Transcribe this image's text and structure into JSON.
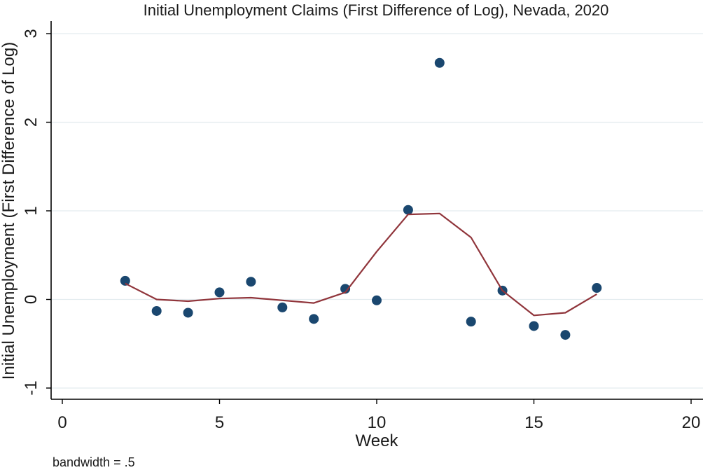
{
  "chart_data": {
    "type": "scatter",
    "title": "Initial Unemployment Claims (First Difference of Log), Nevada, 2020",
    "xlabel": "Week",
    "ylabel": "Initial Unemployment (First Difference of Log)",
    "note": "bandwidth = .5",
    "xlim": [
      0,
      20
    ],
    "ylim": [
      -1,
      3
    ],
    "x_ticks": [
      0,
      5,
      10,
      15,
      20
    ],
    "y_ticks": [
      -1,
      0,
      1,
      2,
      3
    ],
    "grid": true,
    "series": [
      {
        "kind": "scatter",
        "color": "#1a476f",
        "points": [
          [
            2,
            0.21
          ],
          [
            3,
            -0.13
          ],
          [
            4,
            -0.15
          ],
          [
            5,
            0.08
          ],
          [
            6,
            0.2
          ],
          [
            7,
            -0.09
          ],
          [
            8,
            -0.22
          ],
          [
            9,
            0.12
          ],
          [
            10,
            -0.01
          ],
          [
            11,
            1.01
          ],
          [
            12,
            2.67
          ],
          [
            13,
            -0.25
          ],
          [
            14,
            0.1
          ],
          [
            15,
            -0.3
          ],
          [
            16,
            -0.4
          ],
          [
            17,
            0.13
          ]
        ]
      },
      {
        "kind": "line",
        "color": "#90353b",
        "points": [
          [
            2,
            0.18
          ],
          [
            3,
            0.0
          ],
          [
            4,
            -0.02
          ],
          [
            5,
            0.01
          ],
          [
            6,
            0.02
          ],
          [
            7,
            -0.01
          ],
          [
            8,
            -0.04
          ],
          [
            9,
            0.08
          ],
          [
            10,
            0.54
          ],
          [
            11,
            0.96
          ],
          [
            12,
            0.97
          ],
          [
            13,
            0.7
          ],
          [
            14,
            0.1
          ],
          [
            15,
            -0.18
          ],
          [
            16,
            -0.15
          ],
          [
            17,
            0.06
          ]
        ]
      }
    ]
  }
}
